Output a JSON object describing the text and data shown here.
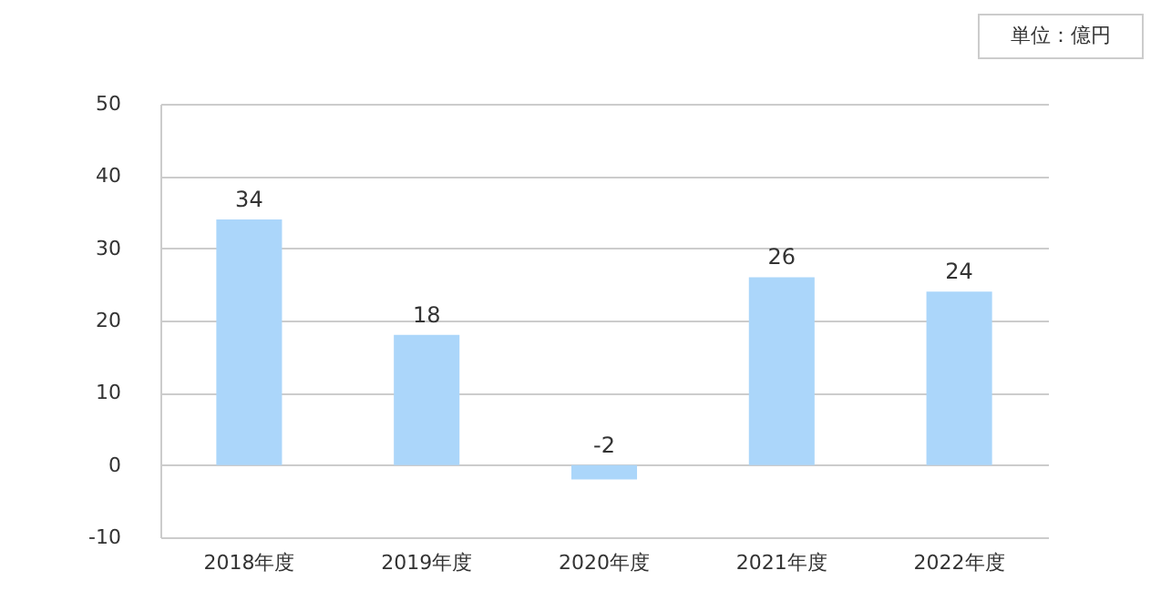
{
  "chart_data": {
    "type": "bar",
    "categories": [
      "2018年度",
      "2019年度",
      "2020年度",
      "2021年度",
      "2022年度"
    ],
    "values": [
      34,
      18,
      -2,
      26,
      24
    ],
    "color": "#abd6fa",
    "ylim": [
      -10,
      50
    ],
    "yticks": [
      -10,
      0,
      10,
      20,
      30,
      40,
      50
    ],
    "grid": "y",
    "data_labels": true,
    "annotations": [
      "単位：億円"
    ]
  }
}
